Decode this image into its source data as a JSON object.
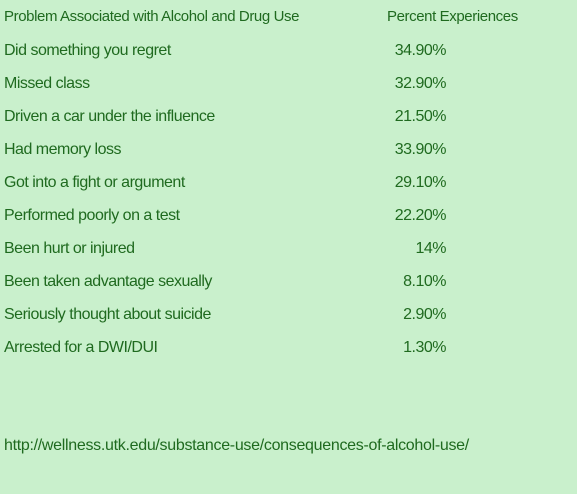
{
  "header": {
    "problem": "Problem Associated with Alcohol and Drug Use",
    "percent": "Percent Experiences"
  },
  "rows": [
    {
      "label": "Did something you regret",
      "value": "34.90%"
    },
    {
      "label": "Missed class",
      "value": "32.90%"
    },
    {
      "label": "Driven a car under the influence",
      "value": "21.50%"
    },
    {
      "label": "Had memory loss",
      "value": "33.90%"
    },
    {
      "label": "Got into a fight or argument",
      "value": "29.10%"
    },
    {
      "label": "Performed poorly on a test",
      "value": "22.20%"
    },
    {
      "label": "Been hurt or injured",
      "value": "14%"
    },
    {
      "label": "Been taken advantage sexually",
      "value": "8.10%"
    },
    {
      "label": "Seriously thought about suicide",
      "value": "2.90%"
    },
    {
      "label": "Arrested for a DWI/DUI",
      "value": "1.30%"
    }
  ],
  "source": "http://wellness.utk.edu/substance-use/consequences-of-alcohol-use/",
  "colors": {
    "background": "#c9f0cc",
    "text": "#1f6a1f"
  }
}
